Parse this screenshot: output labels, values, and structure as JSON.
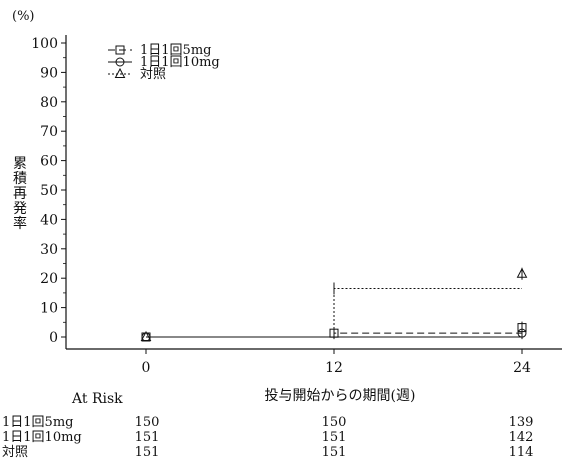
{
  "chart_data": {
    "type": "line",
    "title": "",
    "y_unit": "(%)",
    "ylabel": "累積再発率",
    "xlabel": "投与開始からの期間(週)",
    "ylim": [
      0,
      100
    ],
    "yticks": [
      0,
      10,
      20,
      30,
      40,
      50,
      60,
      70,
      80,
      90,
      100
    ],
    "xlim": [
      -12,
      26
    ],
    "xticks": [
      0,
      12,
      24
    ],
    "grid": false,
    "legend_position": "top-left",
    "series": [
      {
        "name": "1日1回5mg",
        "line_style": "dashed",
        "marker": "square",
        "steps": [
          [
            0,
            0
          ],
          [
            12,
            1.3
          ],
          [
            24,
            1.3
          ]
        ],
        "censor": [
          [
            12,
            1.3
          ],
          [
            24,
            3.2
          ]
        ]
      },
      {
        "name": "1日1回10mg",
        "line_style": "solid",
        "marker": "circle",
        "steps": [
          [
            0,
            0
          ],
          [
            12,
            0
          ],
          [
            24,
            0
          ]
        ],
        "censor": [
          [
            24,
            1.3
          ]
        ]
      },
      {
        "name": "対照",
        "line_style": "dotted",
        "marker": "triangle",
        "steps": [
          [
            0,
            0
          ],
          [
            12,
            16.5
          ],
          [
            24,
            16.5
          ]
        ],
        "censor": [
          [
            12,
            16.5
          ],
          [
            24,
            21.5
          ]
        ]
      }
    ],
    "at_risk": {
      "title": "At Risk",
      "rows": [
        {
          "label": "1日1回5mg",
          "values": [
            150,
            150,
            139
          ]
        },
        {
          "label": "1日1回10mg",
          "values": [
            151,
            151,
            142
          ]
        },
        {
          "label": "対照",
          "values": [
            151,
            151,
            114
          ]
        }
      ]
    }
  }
}
